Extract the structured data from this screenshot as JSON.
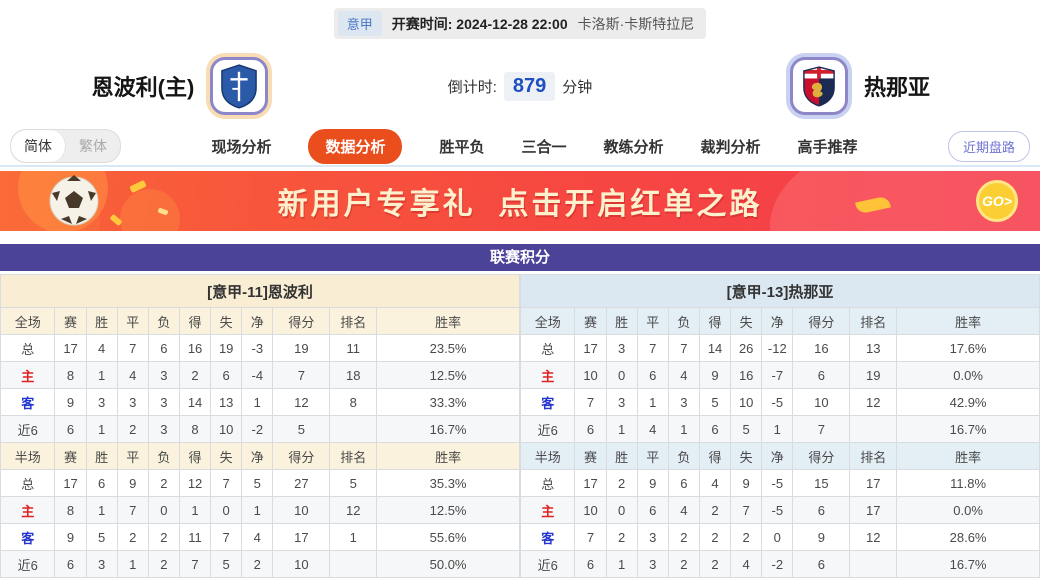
{
  "header": {
    "league": "意甲",
    "kickoff_label": "开赛时间:",
    "kickoff_time": "2024-12-28 22:00",
    "venue": "卡洛斯·卡斯特拉尼",
    "home_team": "恩波利(主)",
    "away_team": "热那亚",
    "countdown_label": "倒计时:",
    "countdown_value": "879",
    "countdown_unit": "分钟"
  },
  "nav": {
    "lang_simplified": "简体",
    "lang_traditional": "繁体",
    "tabs": [
      {
        "id": "live",
        "label": "现场分析",
        "active": false
      },
      {
        "id": "data",
        "label": "数据分析",
        "active": true
      },
      {
        "id": "wdl",
        "label": "胜平负",
        "active": false
      },
      {
        "id": "three-in-one",
        "label": "三合一",
        "active": false
      },
      {
        "id": "coach",
        "label": "教练分析",
        "active": false
      },
      {
        "id": "referee",
        "label": "裁判分析",
        "active": false
      },
      {
        "id": "expert",
        "label": "高手推荐",
        "active": false
      }
    ],
    "recent_button": "近期盘路"
  },
  "banner": {
    "text": "新用户专享礼  点击开启红单之路",
    "go_label": "GO>"
  },
  "league_table": {
    "title": "联赛积分",
    "columns_full": [
      "全场",
      "赛",
      "胜",
      "平",
      "负",
      "得",
      "失",
      "净",
      "得分",
      "排名",
      "胜率"
    ],
    "columns_half": [
      "半场",
      "赛",
      "胜",
      "平",
      "负",
      "得",
      "失",
      "净",
      "得分",
      "排名",
      "胜率"
    ],
    "home": {
      "header": "[意甲-11]恩波利",
      "full": [
        {
          "label": "总",
          "key": "total",
          "values": [
            "17",
            "4",
            "7",
            "6",
            "16",
            "19",
            "-3",
            "19",
            "11",
            "23.5%"
          ]
        },
        {
          "label": "主",
          "key": "home",
          "values": [
            "8",
            "1",
            "4",
            "3",
            "2",
            "6",
            "-4",
            "7",
            "18",
            "12.5%"
          ]
        },
        {
          "label": "客",
          "key": "away",
          "values": [
            "9",
            "3",
            "3",
            "3",
            "14",
            "13",
            "1",
            "12",
            "8",
            "33.3%"
          ]
        },
        {
          "label": "近6",
          "key": "recent",
          "values": [
            "6",
            "1",
            "2",
            "3",
            "8",
            "10",
            "-2",
            "5",
            "",
            "16.7%"
          ]
        }
      ],
      "half": [
        {
          "label": "总",
          "key": "total",
          "values": [
            "17",
            "6",
            "9",
            "2",
            "12",
            "7",
            "5",
            "27",
            "5",
            "35.3%"
          ]
        },
        {
          "label": "主",
          "key": "home",
          "values": [
            "8",
            "1",
            "7",
            "0",
            "1",
            "0",
            "1",
            "10",
            "12",
            "12.5%"
          ]
        },
        {
          "label": "客",
          "key": "away",
          "values": [
            "9",
            "5",
            "2",
            "2",
            "11",
            "7",
            "4",
            "17",
            "1",
            "55.6%"
          ]
        },
        {
          "label": "近6",
          "key": "recent",
          "values": [
            "6",
            "3",
            "1",
            "2",
            "7",
            "5",
            "2",
            "10",
            "",
            "50.0%"
          ]
        }
      ]
    },
    "away": {
      "header": "[意甲-13]热那亚",
      "full": [
        {
          "label": "总",
          "key": "total",
          "values": [
            "17",
            "3",
            "7",
            "7",
            "14",
            "26",
            "-12",
            "16",
            "13",
            "17.6%"
          ]
        },
        {
          "label": "主",
          "key": "home",
          "values": [
            "10",
            "0",
            "6",
            "4",
            "9",
            "16",
            "-7",
            "6",
            "19",
            "0.0%"
          ]
        },
        {
          "label": "客",
          "key": "away",
          "values": [
            "7",
            "3",
            "1",
            "3",
            "5",
            "10",
            "-5",
            "10",
            "12",
            "42.9%"
          ]
        },
        {
          "label": "近6",
          "key": "recent",
          "values": [
            "6",
            "1",
            "4",
            "1",
            "6",
            "5",
            "1",
            "7",
            "",
            "16.7%"
          ]
        }
      ],
      "half": [
        {
          "label": "总",
          "key": "total",
          "values": [
            "17",
            "2",
            "9",
            "6",
            "4",
            "9",
            "-5",
            "15",
            "17",
            "11.8%"
          ]
        },
        {
          "label": "主",
          "key": "home",
          "values": [
            "10",
            "0",
            "6",
            "4",
            "2",
            "7",
            "-5",
            "6",
            "17",
            "0.0%"
          ]
        },
        {
          "label": "客",
          "key": "away",
          "values": [
            "7",
            "2",
            "3",
            "2",
            "2",
            "2",
            "0",
            "9",
            "12",
            "28.6%"
          ]
        },
        {
          "label": "近6",
          "key": "recent",
          "values": [
            "6",
            "1",
            "3",
            "2",
            "2",
            "4",
            "-2",
            "6",
            "",
            "16.7%"
          ]
        }
      ]
    }
  },
  "colors": {
    "accent_orange": "#ea4e1c",
    "table_title_purple": "#4b4398",
    "home_header_cream": "#f9eed4",
    "away_header_blue": "#dce8f1",
    "row_label_home_red": "#dd2222",
    "row_label_away_blue": "#2536cf",
    "countdown_blue": "#1d4fc0",
    "banner_red": "#f64741",
    "go_gold": "#fbcf33",
    "recent_btn_purple": "#6f74d2"
  }
}
